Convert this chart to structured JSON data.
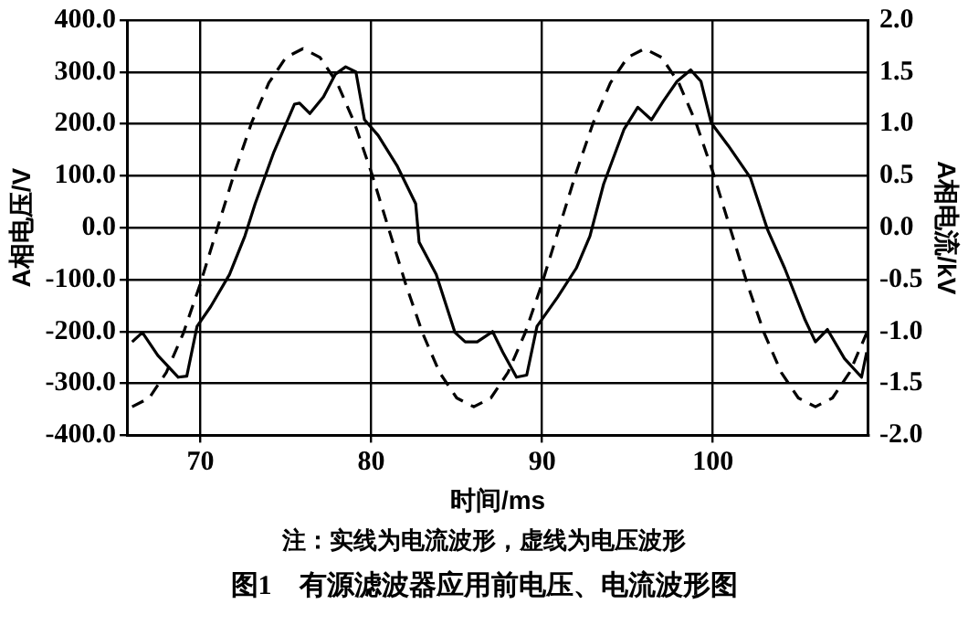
{
  "chart_data": {
    "type": "line",
    "xlabel": "时间/ms",
    "ylabel": "A相电压/V",
    "y2label": "A相电流/kV",
    "title": "图1　有源滤波器应用前电压、电流波形图",
    "annotations": [
      "注：实线为电流波形，虚线为电压波形"
    ],
    "xlim": [
      65.7,
      109.1
    ],
    "xticks": [
      70,
      80,
      90,
      100
    ],
    "ylim": [
      -400,
      400
    ],
    "yticks": [
      {
        "value": -400,
        "label": "-400.0"
      },
      {
        "value": -300,
        "label": "-300.0"
      },
      {
        "value": -200,
        "label": "-200.0"
      },
      {
        "value": -100,
        "label": "-100.0"
      },
      {
        "value": 0,
        "label": "0.0"
      },
      {
        "value": 100,
        "label": "100.0"
      },
      {
        "value": 200,
        "label": "200.0"
      },
      {
        "value": 300,
        "label": "300.0"
      },
      {
        "value": 400,
        "label": "400.0"
      }
    ],
    "y2lim": [
      -2,
      2
    ],
    "y2ticks": [
      {
        "value": -2,
        "label": "-2.0"
      },
      {
        "value": -1.5,
        "label": "-1.5"
      },
      {
        "value": -1,
        "label": "-1.0"
      },
      {
        "value": -0.5,
        "label": "-0.5"
      },
      {
        "value": 0,
        "label": "0.0"
      },
      {
        "value": 0.5,
        "label": "0.5"
      },
      {
        "value": 1,
        "label": "1.0"
      },
      {
        "value": 1.5,
        "label": "1.5"
      },
      {
        "value": 2,
        "label": "2.0"
      }
    ],
    "grid": true,
    "marker": "none",
    "legend": false,
    "series": [
      {
        "color": "#000000",
        "line_style": "dashed",
        "x": [
          66,
          67,
          68,
          69,
          70,
          71,
          72,
          73,
          74,
          75,
          76,
          77,
          78,
          79,
          80,
          81,
          82,
          83,
          84,
          85,
          86,
          87,
          88,
          89,
          90,
          91,
          92,
          93,
          94,
          95,
          96,
          97,
          98,
          99,
          100,
          101,
          102,
          103,
          104,
          105,
          106,
          107,
          108,
          109
        ],
        "values": [
          -345,
          -328,
          -279,
          -203,
          -107,
          0,
          107,
          203,
          279,
          328,
          345,
          328,
          279,
          203,
          107,
          0,
          -107,
          -203,
          -279,
          -328,
          -345,
          -328,
          -279,
          -203,
          -107,
          0,
          107,
          203,
          279,
          328,
          345,
          328,
          279,
          203,
          107,
          0,
          -107,
          -203,
          -279,
          -328,
          -345,
          -328,
          -279,
          -203
        ]
      },
      {
        "color": "#000000",
        "line_style": "solid",
        "axis": "y2",
        "x": [
          66,
          66.6,
          67.5,
          68.7,
          69.2,
          69.8,
          70.6,
          71.7,
          72.6,
          73.2,
          74.3,
          75.5,
          75.8,
          76.4,
          77.2,
          77.9,
          78.5,
          79.1,
          79.6,
          80.4,
          81.5,
          82.6,
          82.8,
          83.8,
          84.9,
          85.5,
          86.2,
          87.1,
          87.7,
          88.5,
          89.1,
          89.7,
          90.9,
          92.0,
          92.8,
          93.6,
          94.8,
          95.6,
          96.4,
          97.1,
          97.9,
          98.7,
          99.3,
          99.9,
          100.9,
          102.2,
          103.2,
          104.2,
          105.4,
          106.0,
          106.7,
          107.7,
          108.7,
          109.0
        ],
        "values": [
          -1.1,
          -1.01,
          -1.23,
          -1.44,
          -1.43,
          -0.95,
          -0.76,
          -0.45,
          -0.08,
          0.23,
          0.73,
          1.19,
          1.2,
          1.1,
          1.26,
          1.48,
          1.55,
          1.5,
          1.04,
          0.89,
          0.6,
          0.23,
          -0.14,
          -0.45,
          -1.01,
          -1.1,
          -1.1,
          -1.0,
          -1.2,
          -1.44,
          -1.42,
          -0.95,
          -0.67,
          -0.39,
          -0.08,
          0.42,
          0.95,
          1.16,
          1.04,
          1.22,
          1.41,
          1.52,
          1.41,
          1.01,
          0.79,
          0.48,
          -0.02,
          -0.39,
          -0.89,
          -1.1,
          -0.98,
          -1.26,
          -1.44,
          -1.2
        ]
      }
    ]
  }
}
